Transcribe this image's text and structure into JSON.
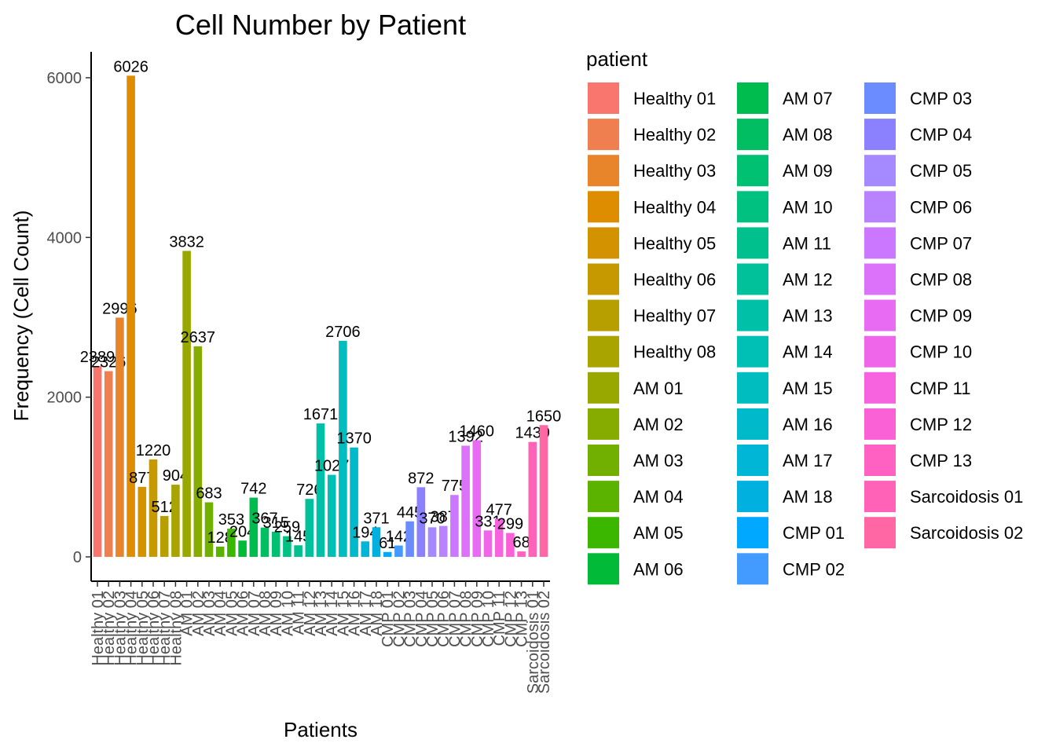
{
  "chart_data": {
    "type": "bar",
    "title": "Cell Number by Patient",
    "xlabel": "Patients",
    "ylabel": "Frequency (Cell Count)",
    "ylim": [
      0,
      6300
    ],
    "yticks": [
      0,
      2000,
      4000,
      6000
    ],
    "grid": false,
    "legend": {
      "title": "patient",
      "position": "right"
    },
    "categories": [
      "Healthy 01",
      "Healthy 02",
      "Healthy 03",
      "Healthy 04",
      "Healthy 05",
      "Healthy 06",
      "Healthy 07",
      "Healthy 08",
      "AM 01",
      "AM 02",
      "AM 03",
      "AM 04",
      "AM 05",
      "AM 06",
      "AM 07",
      "AM 08",
      "AM 09",
      "AM 10",
      "AM 11",
      "AM 12",
      "AM 13",
      "AM 14",
      "AM 15",
      "AM 16",
      "AM 17",
      "AM 18",
      "CMP 01",
      "CMP 02",
      "CMP 03",
      "CMP 04",
      "CMP 05",
      "CMP 06",
      "CMP 07",
      "CMP 08",
      "CMP 09",
      "CMP 10",
      "CMP 11",
      "CMP 12",
      "CMP 13",
      "Sarcoidosis 01",
      "Sarcoidosis 02"
    ],
    "values": [
      2389,
      2326,
      2996,
      6026,
      877,
      1220,
      512,
      904,
      3832,
      2637,
      683,
      128,
      353,
      204,
      742,
      367,
      315,
      259,
      145,
      726,
      1671,
      1027,
      2706,
      1370,
      194,
      371,
      61,
      142,
      445,
      872,
      370,
      387,
      775,
      1392,
      1460,
      331,
      477,
      299,
      68,
      1439,
      1650
    ],
    "data_labels": [
      "2389",
      "2326",
      "2996",
      "6026",
      "877",
      "1220",
      "512",
      "904",
      "3832",
      "2637",
      "683",
      "128",
      "353",
      "204",
      "742",
      "367",
      "315",
      "259",
      "145",
      "726",
      "1671",
      "1027",
      "2706",
      "1370",
      "194",
      "371",
      "61",
      "142",
      "445",
      "872",
      "370",
      "387",
      "775",
      "1392",
      "1460",
      "331",
      "477",
      "299",
      "68",
      "1439",
      "1650"
    ],
    "colors": [
      "#F8766D",
      "#F07F4F",
      "#E8852A",
      "#DE8C00",
      "#D39200",
      "#C69900",
      "#B89F00",
      "#A9A400",
      "#99A800",
      "#87AC00",
      "#72B000",
      "#5BB300",
      "#3BB700",
      "#00BA38",
      "#00BC4F",
      "#00BE61",
      "#00C071",
      "#00C17F",
      "#00C08D",
      "#00C19A",
      "#00C0A7",
      "#00BFB4",
      "#00BDC0",
      "#00BACB",
      "#00B6D6",
      "#00B1E0",
      "#00A9FF",
      "#439BFF",
      "#6A8CFF",
      "#8B81FF",
      "#A58AFF",
      "#B983FF",
      "#CC77FF",
      "#DC71FA",
      "#E86BF3",
      "#F066EA",
      "#F763DE",
      "#FB61D7",
      "#FF61C3",
      "#FF62B7",
      "#FF67A4"
    ]
  }
}
